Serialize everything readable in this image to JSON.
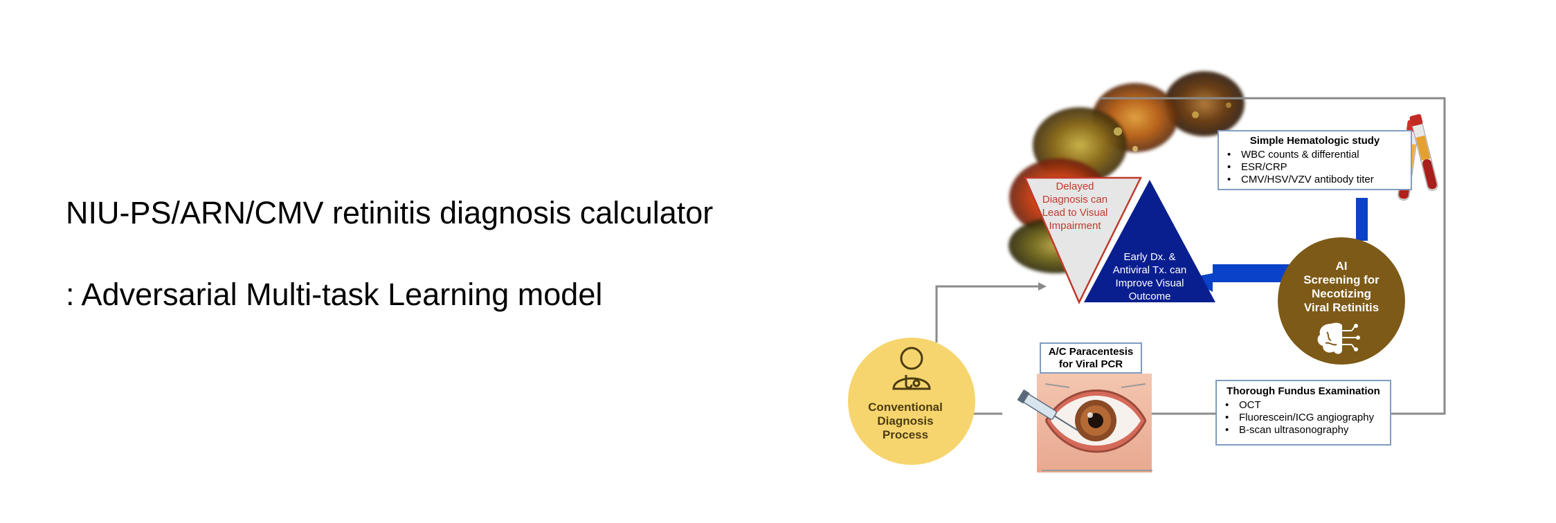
{
  "title": {
    "line1": "NIU-PS/ARN/CMV retinitis diagnosis calculator",
    "line2": ": Adversarial Multi-task Learning model"
  },
  "diagram": {
    "hematologic": {
      "title": "Simple Hematologic study",
      "items": [
        "WBC counts & differential",
        "ESR/CRP",
        "CMV/HSV/VZV antibody titer"
      ]
    },
    "delayed": [
      "Delayed",
      "Diagnosis can",
      "Lead to Visual",
      "Impairment"
    ],
    "early": [
      "Early Dx. &",
      "Antiviral Tx. can",
      "Improve Visual",
      "Outcome"
    ],
    "ai": [
      "AI",
      "Screening for",
      "Necotizing",
      "Viral Retinitis"
    ],
    "pcr": [
      "A/C Paracentesis",
      "for Viral PCR"
    ],
    "fundus": {
      "title": "Thorough Fundus Examination",
      "items": [
        "OCT",
        "Fluorescein/ICG angiography",
        "B-scan ultrasonography"
      ]
    },
    "conventional": [
      "Conventional",
      "Diagnosis",
      "Process"
    ]
  },
  "colors": {
    "navy": "#0a1f8f",
    "arrow_blue": "#0a42c8",
    "ai_gold": "#7d5a17",
    "conv_yellow": "#f7d56e",
    "delayed_red": "#c0392b",
    "connector": "#8a8a8a"
  },
  "icons": [
    "fundus-photo-icon",
    "blood-tube-icon",
    "brain-circuit-icon",
    "doctor-icon",
    "eye-injection-icon"
  ]
}
